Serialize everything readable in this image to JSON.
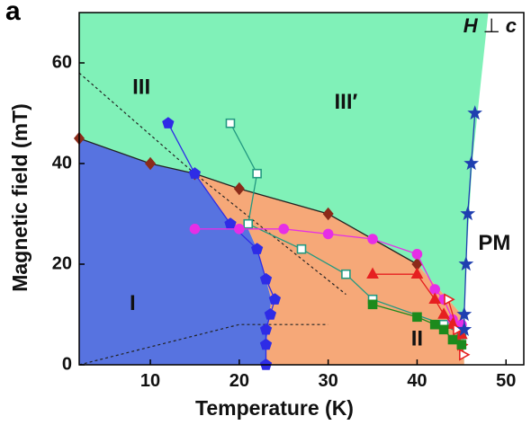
{
  "panel_label": "a",
  "chart_data": {
    "type": "scatter",
    "xlabel": "Temperature (K)",
    "ylabel": "Magnetic field (mT)",
    "xlim": [
      2,
      52
    ],
    "ylim": [
      0,
      70
    ],
    "xticks": [
      10,
      20,
      30,
      40,
      50
    ],
    "yticks": [
      0,
      20,
      40,
      60
    ],
    "field_annotation": {
      "symbol": "H",
      "relation": "⊥",
      "axis": "c"
    },
    "region_labels": [
      {
        "id": "I",
        "text": "I",
        "x": 8,
        "y": 12
      },
      {
        "id": "II",
        "text": "II",
        "x": 40,
        "y": 5
      },
      {
        "id": "III",
        "text": "III",
        "x": 9,
        "y": 55
      },
      {
        "id": "III_prime",
        "text": "III′",
        "x": 32,
        "y": 52
      },
      {
        "id": "PM",
        "text": "PM",
        "x": 48.7,
        "y": 24
      }
    ],
    "regions": [
      {
        "id": "I",
        "color": "#5773e0",
        "outline": [
          [
            2,
            45
          ],
          [
            10,
            40
          ],
          [
            15,
            38
          ],
          [
            19,
            28
          ],
          [
            21,
            27
          ],
          [
            22,
            23
          ],
          [
            23,
            17
          ],
          [
            23.6,
            13
          ],
          [
            23.4,
            10
          ],
          [
            23.1,
            5
          ],
          [
            23,
            0
          ],
          [
            2,
            0
          ]
        ]
      },
      {
        "id": "II",
        "color": "#f6a878",
        "outline": [
          [
            15,
            38
          ],
          [
            20,
            35
          ],
          [
            30,
            30
          ],
          [
            40,
            20
          ],
          [
            44,
            12
          ],
          [
            45,
            10
          ],
          [
            45.2,
            5
          ],
          [
            45.3,
            0
          ],
          [
            23,
            0
          ],
          [
            23.1,
            5
          ],
          [
            23.4,
            10
          ],
          [
            23.6,
            13
          ],
          [
            23,
            17
          ],
          [
            22,
            23
          ],
          [
            21,
            27
          ],
          [
            19,
            28
          ]
        ]
      },
      {
        "id": "III",
        "color": "#80f1b8",
        "outline": [
          [
            2,
            70
          ],
          [
            48,
            70
          ],
          [
            46.8,
            50
          ],
          [
            46.2,
            40
          ],
          [
            45.5,
            20
          ],
          [
            45.3,
            10
          ],
          [
            45.3,
            0
          ],
          [
            45.2,
            5
          ],
          [
            45,
            10
          ],
          [
            44,
            12
          ],
          [
            40,
            20
          ],
          [
            30,
            30
          ],
          [
            20,
            35
          ],
          [
            15,
            38
          ],
          [
            10,
            40
          ],
          [
            2,
            45
          ]
        ]
      }
    ],
    "series": [
      {
        "marker": "diamond",
        "color": "#8b2b1a",
        "filled": true,
        "points": [
          [
            2,
            45
          ],
          [
            10,
            40
          ],
          [
            15,
            38
          ],
          [
            20,
            35
          ],
          [
            30,
            30
          ],
          [
            40,
            20
          ]
        ]
      },
      {
        "marker": "pentagon",
        "color": "#2e2ce6",
        "filled": true,
        "points": [
          [
            12,
            48
          ],
          [
            15,
            38
          ],
          [
            19,
            28
          ],
          [
            22,
            23
          ],
          [
            23,
            17
          ],
          [
            24,
            13
          ],
          [
            23.5,
            10
          ],
          [
            23,
            7
          ],
          [
            23,
            4
          ],
          [
            23,
            0
          ]
        ]
      },
      {
        "marker": "square",
        "color": "#229980",
        "filled": false,
        "points": [
          [
            19,
            48
          ],
          [
            22,
            38
          ],
          [
            21,
            28
          ],
          [
            27,
            23
          ],
          [
            32,
            18
          ],
          [
            35,
            13
          ],
          [
            43,
            8
          ],
          [
            45,
            6
          ]
        ]
      },
      {
        "marker": "circle",
        "color": "#e62ee6",
        "filled": true,
        "points": [
          [
            15,
            27
          ],
          [
            20,
            27
          ],
          [
            25,
            27
          ],
          [
            30,
            26
          ],
          [
            35,
            25
          ],
          [
            40,
            22
          ],
          [
            42,
            15
          ],
          [
            43,
            13
          ],
          [
            44,
            9
          ],
          [
            45,
            8
          ]
        ]
      },
      {
        "marker": "triangle",
        "color": "#e62020",
        "filled": true,
        "points": [
          [
            35,
            18
          ],
          [
            40,
            18
          ],
          [
            42,
            13
          ],
          [
            43,
            10
          ],
          [
            44,
            8
          ],
          [
            45,
            6
          ]
        ]
      },
      {
        "marker": "triangle-right",
        "color": "#e62020",
        "filled": false,
        "points": [
          [
            43.5,
            13
          ],
          [
            44.5,
            7
          ],
          [
            45,
            4
          ],
          [
            45.2,
            2
          ]
        ]
      },
      {
        "marker": "square",
        "color": "#1c8a1c",
        "filled": true,
        "points": [
          [
            35,
            12
          ],
          [
            40,
            9.5
          ],
          [
            42,
            8
          ],
          [
            43,
            7
          ],
          [
            44,
            5
          ],
          [
            45,
            4
          ]
        ]
      },
      {
        "marker": "star",
        "color": "#1f3fb0",
        "filled": true,
        "points": [
          [
            45.3,
            7
          ],
          [
            45.3,
            10
          ],
          [
            45.5,
            20
          ],
          [
            45.7,
            30
          ],
          [
            46.1,
            40
          ],
          [
            46.5,
            50
          ]
        ]
      }
    ],
    "dashed_lines": [
      [
        [
          2,
          58
        ],
        [
          15,
          38
        ],
        [
          32,
          14
        ]
      ],
      [
        [
          2,
          0
        ],
        [
          20,
          8
        ],
        [
          30,
          8
        ]
      ]
    ]
  }
}
